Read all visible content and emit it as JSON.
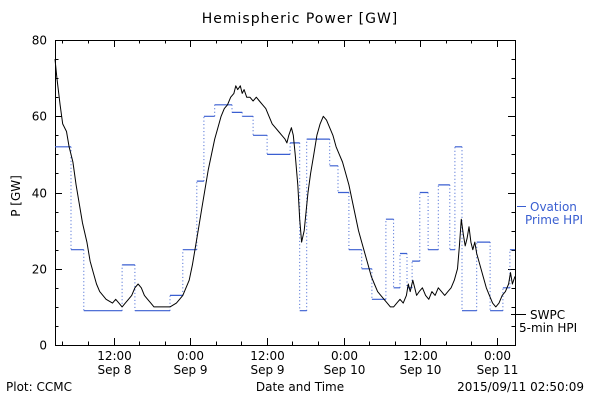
{
  "footer": {
    "left": "Plot: CCMC",
    "timestamp": "2015/09/11 02:50:09"
  },
  "legend": {
    "ovation": {
      "line1": "Ovation",
      "line2": "Prime HPI",
      "color": "#3a5fd1"
    },
    "swpc": {
      "line1": "SWPC",
      "line2": "5-min HPI",
      "color": "#000000"
    }
  },
  "chart_data": {
    "type": "line",
    "title": "Hemispheric Power [GW]",
    "xlabel": "Date and Time",
    "ylabel": "P [GW]",
    "ylim": [
      0,
      80
    ],
    "yticks": [
      0,
      20,
      40,
      60,
      80
    ],
    "x_units": "hours from plot start",
    "xlim_hours": [
      0,
      72
    ],
    "xticks": [
      {
        "hours": 9.17,
        "time": "12:00",
        "date": "Sep 8"
      },
      {
        "hours": 21.17,
        "time": "0:00",
        "date": "Sep 9"
      },
      {
        "hours": 33.17,
        "time": "12:00",
        "date": "Sep 9"
      },
      {
        "hours": 45.17,
        "time": "0:00",
        "date": "Sep 10"
      },
      {
        "hours": 57.17,
        "time": "12:00",
        "date": "Sep 10"
      },
      {
        "hours": 69.17,
        "time": "0:00",
        "date": "Sep 11"
      }
    ],
    "layout": {
      "grid": false,
      "legend_position": "right"
    },
    "series": [
      {
        "name": "Ovation Prime HPI",
        "color": "#3a5fd1",
        "style": "step-dotted",
        "points": [
          [
            0,
            52
          ],
          [
            2.5,
            25
          ],
          [
            4.5,
            9
          ],
          [
            10.5,
            21
          ],
          [
            12.5,
            9
          ],
          [
            18,
            13
          ],
          [
            20,
            25
          ],
          [
            22.2,
            43
          ],
          [
            23.3,
            60
          ],
          [
            25,
            63
          ],
          [
            27.7,
            61
          ],
          [
            29.3,
            60
          ],
          [
            31,
            55
          ],
          [
            33.2,
            50
          ],
          [
            36.8,
            53
          ],
          [
            38.3,
            9
          ],
          [
            39.4,
            54
          ],
          [
            43,
            47
          ],
          [
            44.3,
            40
          ],
          [
            46,
            25
          ],
          [
            48,
            20
          ],
          [
            49.6,
            12
          ],
          [
            51.8,
            33
          ],
          [
            53,
            15
          ],
          [
            54,
            24
          ],
          [
            55.1,
            15
          ],
          [
            55.9,
            22
          ],
          [
            57.1,
            40
          ],
          [
            58.4,
            25
          ],
          [
            60,
            42
          ],
          [
            61.8,
            25
          ],
          [
            62.6,
            52
          ],
          [
            63.7,
            9
          ],
          [
            66,
            27
          ],
          [
            68.1,
            9
          ],
          [
            70.1,
            15
          ],
          [
            71.2,
            25
          ]
        ]
      },
      {
        "name": "SWPC 5-min HPI",
        "color": "#000000",
        "style": "line",
        "points": [
          [
            0,
            75
          ],
          [
            0.3,
            70
          ],
          [
            0.8,
            63
          ],
          [
            1.2,
            58
          ],
          [
            1.8,
            56
          ],
          [
            2.2,
            52
          ],
          [
            2.8,
            48
          ],
          [
            3.3,
            42
          ],
          [
            3.8,
            37
          ],
          [
            4.3,
            32
          ],
          [
            5,
            27
          ],
          [
            5.5,
            22
          ],
          [
            6,
            19
          ],
          [
            6.5,
            16
          ],
          [
            7,
            14
          ],
          [
            7.5,
            13
          ],
          [
            8,
            12
          ],
          [
            9,
            11
          ],
          [
            9.5,
            12
          ],
          [
            10,
            11
          ],
          [
            10.5,
            10
          ],
          [
            11,
            11
          ],
          [
            11.5,
            12
          ],
          [
            12,
            13
          ],
          [
            12.5,
            15
          ],
          [
            13,
            16
          ],
          [
            13.5,
            15
          ],
          [
            14,
            13
          ],
          [
            14.5,
            12
          ],
          [
            15,
            11
          ],
          [
            15.5,
            10
          ],
          [
            16,
            10
          ],
          [
            17,
            10
          ],
          [
            18,
            10
          ],
          [
            19,
            11
          ],
          [
            19.5,
            12
          ],
          [
            20,
            13
          ],
          [
            20.5,
            15
          ],
          [
            21,
            17
          ],
          [
            21.5,
            21
          ],
          [
            22,
            26
          ],
          [
            22.5,
            31
          ],
          [
            23,
            36
          ],
          [
            23.5,
            41
          ],
          [
            24,
            46
          ],
          [
            24.5,
            50
          ],
          [
            25,
            54
          ],
          [
            25.5,
            57
          ],
          [
            26,
            60
          ],
          [
            26.5,
            62
          ],
          [
            27,
            63
          ],
          [
            27.5,
            65
          ],
          [
            28,
            66
          ],
          [
            28.3,
            68
          ],
          [
            28.6,
            67
          ],
          [
            29,
            68
          ],
          [
            29.3,
            66
          ],
          [
            29.6,
            67
          ],
          [
            30,
            65
          ],
          [
            30.5,
            65
          ],
          [
            31,
            64
          ],
          [
            31.5,
            65
          ],
          [
            32,
            64
          ],
          [
            32.5,
            63
          ],
          [
            33,
            62
          ],
          [
            33.5,
            60
          ],
          [
            34,
            58
          ],
          [
            34.5,
            57
          ],
          [
            35,
            56
          ],
          [
            35.5,
            55
          ],
          [
            36,
            54
          ],
          [
            36.3,
            53
          ],
          [
            36.6,
            55
          ],
          [
            37,
            57
          ],
          [
            37.3,
            55
          ],
          [
            37.6,
            50
          ],
          [
            38,
            42
          ],
          [
            38.3,
            33
          ],
          [
            38.6,
            27
          ],
          [
            39,
            30
          ],
          [
            39.3,
            35
          ],
          [
            39.6,
            40
          ],
          [
            40,
            45
          ],
          [
            40.5,
            50
          ],
          [
            41,
            55
          ],
          [
            41.5,
            58
          ],
          [
            42,
            60
          ],
          [
            42.5,
            59
          ],
          [
            43,
            57
          ],
          [
            43.5,
            55
          ],
          [
            44,
            52
          ],
          [
            44.5,
            50
          ],
          [
            45,
            48
          ],
          [
            45.5,
            45
          ],
          [
            46,
            42
          ],
          [
            46.5,
            38
          ],
          [
            47,
            34
          ],
          [
            47.5,
            30
          ],
          [
            48,
            27
          ],
          [
            48.5,
            24
          ],
          [
            49,
            21
          ],
          [
            49.5,
            18
          ],
          [
            50,
            16
          ],
          [
            50.5,
            14
          ],
          [
            51,
            13
          ],
          [
            51.5,
            12
          ],
          [
            52,
            11
          ],
          [
            52.5,
            10
          ],
          [
            53,
            10
          ],
          [
            53.5,
            11
          ],
          [
            54,
            12
          ],
          [
            54.5,
            11
          ],
          [
            55,
            13
          ],
          [
            55.3,
            16
          ],
          [
            55.6,
            14
          ],
          [
            56,
            17
          ],
          [
            56.3,
            15
          ],
          [
            56.6,
            13
          ],
          [
            57,
            14
          ],
          [
            57.5,
            15
          ],
          [
            58,
            13
          ],
          [
            58.5,
            12
          ],
          [
            59,
            14
          ],
          [
            59.5,
            13
          ],
          [
            60,
            15
          ],
          [
            60.5,
            14
          ],
          [
            61,
            13
          ],
          [
            61.5,
            14
          ],
          [
            62,
            15
          ],
          [
            62.5,
            17
          ],
          [
            63,
            20
          ],
          [
            63.3,
            26
          ],
          [
            63.6,
            33
          ],
          [
            63.9,
            29
          ],
          [
            64.2,
            26
          ],
          [
            64.5,
            28
          ],
          [
            64.8,
            31
          ],
          [
            65.1,
            27
          ],
          [
            65.4,
            25
          ],
          [
            65.7,
            27
          ],
          [
            66,
            24
          ],
          [
            66.5,
            21
          ],
          [
            67,
            18
          ],
          [
            67.5,
            15
          ],
          [
            68,
            13
          ],
          [
            68.5,
            11
          ],
          [
            69,
            10
          ],
          [
            69.5,
            11
          ],
          [
            70,
            13
          ],
          [
            70.5,
            14
          ],
          [
            71,
            16
          ],
          [
            71.3,
            19
          ],
          [
            71.6,
            16
          ],
          [
            72,
            18
          ]
        ]
      }
    ]
  }
}
